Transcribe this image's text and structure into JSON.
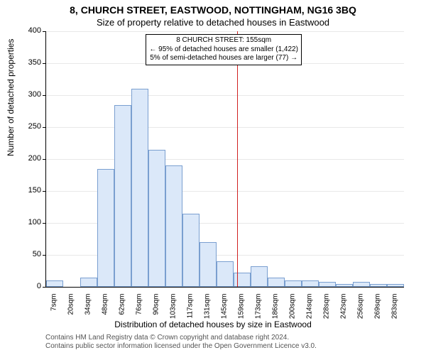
{
  "title_line1": "8, CHURCH STREET, EASTWOOD, NOTTINGHAM, NG16 3BQ",
  "title_line2": "Size of property relative to detached houses in Eastwood",
  "ylabel": "Number of detached properties",
  "xlabel": "Distribution of detached houses by size in Eastwood",
  "footer_line1": "Contains HM Land Registry data © Crown copyright and database right 2024.",
  "footer_line2": "Contains public sector information licensed under the Open Government Licence v3.0.",
  "chart": {
    "type": "histogram",
    "background_color": "#ffffff",
    "grid_color": "#e8e8e8",
    "axis_color": "#000000",
    "bar_fill": "#dbe8f9",
    "bar_border": "#7a9fd0",
    "reference_line_color": "#d02020",
    "ylim": [
      0,
      400
    ],
    "ytick_step": 50,
    "ytick_labels": [
      "0",
      "50",
      "100",
      "150",
      "200",
      "250",
      "300",
      "350",
      "400"
    ],
    "xtick_labels": [
      "7sqm",
      "20sqm",
      "34sqm",
      "48sqm",
      "62sqm",
      "76sqm",
      "90sqm",
      "103sqm",
      "117sqm",
      "131sqm",
      "145sqm",
      "159sqm",
      "173sqm",
      "186sqm",
      "200sqm",
      "214sqm",
      "228sqm",
      "242sqm",
      "256sqm",
      "269sqm",
      "283sqm"
    ],
    "bar_values": [
      10,
      0,
      15,
      185,
      285,
      310,
      215,
      190,
      115,
      70,
      40,
      22,
      32,
      15,
      10,
      10,
      8,
      5,
      8,
      5,
      5
    ],
    "reference_x_sqm": 155,
    "annotation": {
      "line1": "8 CHURCH STREET: 155sqm",
      "line2": "← 95% of detached houses are smaller (1,422)",
      "line3": "5% of semi-detached houses are larger (77) →"
    },
    "title_fontsize": 14,
    "subtitle_fontsize": 13,
    "label_fontsize": 12,
    "tick_fontsize": 11,
    "footer_fontsize": 10
  }
}
